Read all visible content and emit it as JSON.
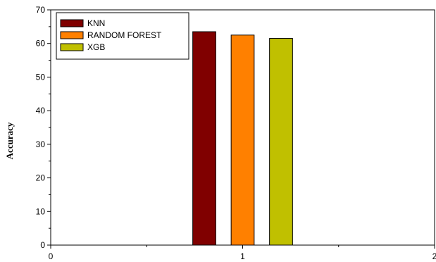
{
  "chart_data": {
    "type": "bar",
    "ylabel": "Accuracy",
    "xlabel": "",
    "xlim": [
      0,
      2
    ],
    "ylim": [
      0,
      70
    ],
    "x_ticks": [
      "0",
      "1",
      "2"
    ],
    "y_ticks": [
      "0",
      "10",
      "20",
      "30",
      "40",
      "50",
      "60",
      "70"
    ],
    "grid": false,
    "legend_position": "top-left",
    "series": [
      {
        "name": "KNN",
        "x": 0.8,
        "value": 63.5,
        "color": "#800000"
      },
      {
        "name": "RANDOM FOREST",
        "x": 1.0,
        "value": 62.5,
        "color": "#ff8000"
      },
      {
        "name": "XGB",
        "x": 1.2,
        "value": 61.5,
        "color": "#c0c000"
      }
    ],
    "bar_width": 0.12
  }
}
